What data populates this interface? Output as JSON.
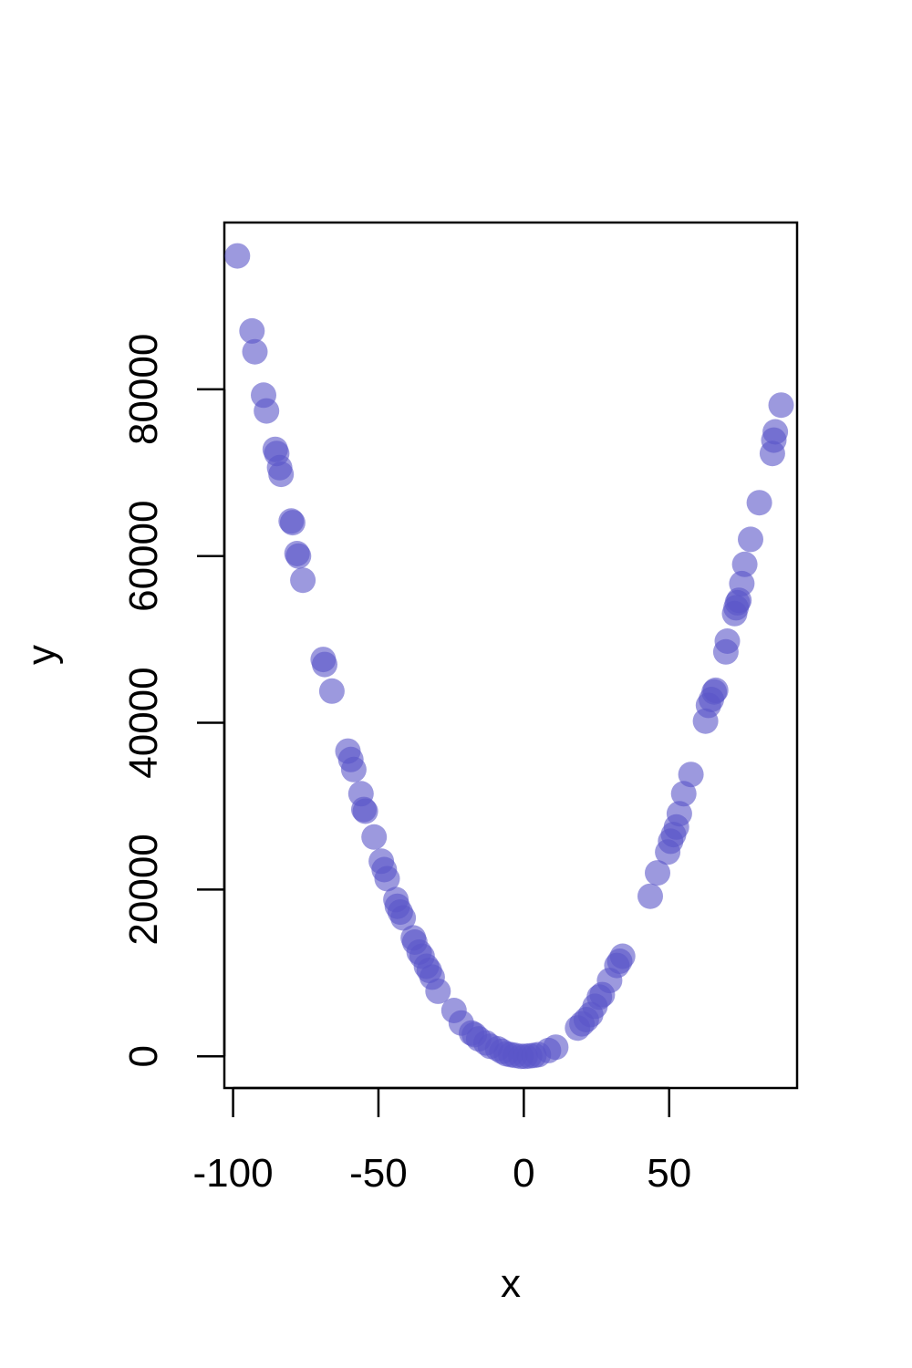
{
  "chart_data": {
    "type": "scatter",
    "title": "",
    "xlabel": "x",
    "ylabel": "y",
    "xlim": [
      -103,
      94
    ],
    "ylim": [
      -3800,
      100000
    ],
    "xticks": [
      -100,
      -50,
      0,
      50
    ],
    "xtick_labels": [
      "-100",
      "-50",
      "0",
      "50"
    ],
    "yticks": [
      0,
      20000,
      40000,
      60000,
      80000
    ],
    "ytick_labels": [
      "0",
      "20000",
      "40000",
      "60000",
      "80000"
    ],
    "grid": false,
    "legend": "none",
    "marker_color": "#5a55c8",
    "marker_opacity": 0.6,
    "series": [
      {
        "points": [
          [
            -98.5,
            96000
          ],
          [
            -93.5,
            87000
          ],
          [
            -92.5,
            84500
          ],
          [
            -89.5,
            79300
          ],
          [
            -88.5,
            77400
          ],
          [
            -85.5,
            72800
          ],
          [
            -85.0,
            72300
          ],
          [
            -84.0,
            70600
          ],
          [
            -83.5,
            69800
          ],
          [
            -80.0,
            64200
          ],
          [
            -79.5,
            64000
          ],
          [
            -78.0,
            60300
          ],
          [
            -77.5,
            60000
          ],
          [
            -76.0,
            57100
          ],
          [
            -69.0,
            47600
          ],
          [
            -68.5,
            47000
          ],
          [
            -66.0,
            43800
          ],
          [
            -60.5,
            36600
          ],
          [
            -59.5,
            35600
          ],
          [
            -58.5,
            34400
          ],
          [
            -56.0,
            31500
          ],
          [
            -55.0,
            29600
          ],
          [
            -54.5,
            29400
          ],
          [
            -51.5,
            26300
          ],
          [
            -49.0,
            23400
          ],
          [
            -48.0,
            22400
          ],
          [
            -47.0,
            21300
          ],
          [
            -44.0,
            18800
          ],
          [
            -43.5,
            18000
          ],
          [
            -42.5,
            17300
          ],
          [
            -41.5,
            16600
          ],
          [
            -38.0,
            14200
          ],
          [
            -37.5,
            13700
          ],
          [
            -36.0,
            12500
          ],
          [
            -35.0,
            12000
          ],
          [
            -33.5,
            10800
          ],
          [
            -32.5,
            10300
          ],
          [
            -31.5,
            9500
          ],
          [
            -29.5,
            7800
          ],
          [
            -24.0,
            5500
          ],
          [
            -21.5,
            4000
          ],
          [
            -18.0,
            2800
          ],
          [
            -17.0,
            2600
          ],
          [
            -15.5,
            2100
          ],
          [
            -13.0,
            1600
          ],
          [
            -11.5,
            1200
          ],
          [
            -9.0,
            900
          ],
          [
            -7.5,
            600
          ],
          [
            -6.0,
            300
          ],
          [
            -4.5,
            200
          ],
          [
            -3.0,
            100
          ],
          [
            -1.0,
            0
          ],
          [
            0.5,
            0
          ],
          [
            2.0,
            50
          ],
          [
            3.5,
            100
          ],
          [
            5.0,
            200
          ],
          [
            8.5,
            700
          ],
          [
            11.0,
            1100
          ],
          [
            18.5,
            3400
          ],
          [
            20.0,
            3900
          ],
          [
            21.5,
            4400
          ],
          [
            23.0,
            5000
          ],
          [
            24.5,
            6000
          ],
          [
            26.0,
            7100
          ],
          [
            27.0,
            7400
          ],
          [
            29.5,
            9100
          ],
          [
            32.0,
            10900
          ],
          [
            33.0,
            11400
          ],
          [
            34.0,
            12000
          ],
          [
            43.5,
            19200
          ],
          [
            46.0,
            22000
          ],
          [
            49.5,
            24500
          ],
          [
            50.5,
            25800
          ],
          [
            51.5,
            26600
          ],
          [
            52.5,
            27500
          ],
          [
            53.5,
            29100
          ],
          [
            55.0,
            31500
          ],
          [
            57.5,
            33800
          ],
          [
            62.5,
            40200
          ],
          [
            63.5,
            42100
          ],
          [
            64.5,
            42800
          ],
          [
            65.5,
            43700
          ],
          [
            66.0,
            43900
          ],
          [
            69.5,
            48500
          ],
          [
            70.0,
            49800
          ],
          [
            72.5,
            53100
          ],
          [
            73.0,
            53800
          ],
          [
            73.5,
            54400
          ],
          [
            74.0,
            54700
          ],
          [
            75.0,
            56700
          ],
          [
            76.0,
            59000
          ],
          [
            78.0,
            62000
          ],
          [
            81.0,
            66400
          ],
          [
            85.5,
            72300
          ],
          [
            86.0,
            73900
          ],
          [
            86.5,
            74900
          ],
          [
            88.5,
            78100
          ]
        ]
      }
    ]
  }
}
